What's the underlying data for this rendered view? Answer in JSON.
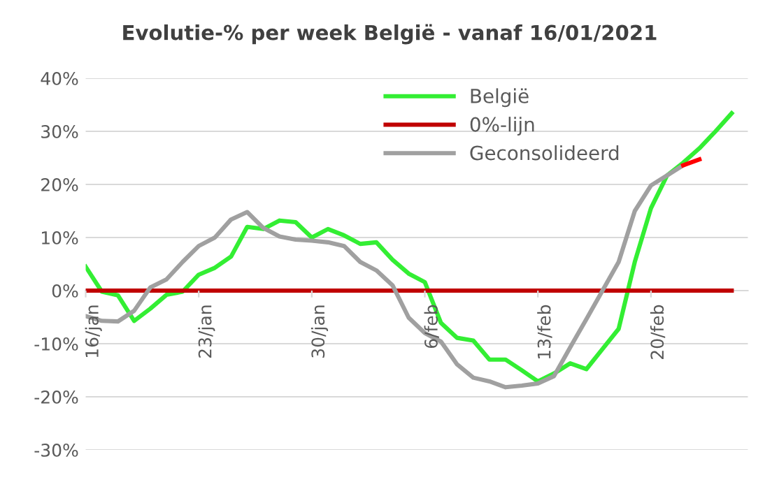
{
  "chart_data": {
    "type": "line",
    "title": "Evolutie-% per week België - vanaf 16/01/2021",
    "x": [
      "2021-01-16",
      "2021-01-17",
      "2021-01-18",
      "2021-01-19",
      "2021-01-20",
      "2021-01-21",
      "2021-01-22",
      "2021-01-23",
      "2021-01-24",
      "2021-01-25",
      "2021-01-26",
      "2021-01-27",
      "2021-01-28",
      "2021-01-29",
      "2021-01-30",
      "2021-01-31",
      "2021-02-01",
      "2021-02-02",
      "2021-02-03",
      "2021-02-04",
      "2021-02-05",
      "2021-02-06",
      "2021-02-07",
      "2021-02-08",
      "2021-02-09",
      "2021-02-10",
      "2021-02-11",
      "2021-02-12",
      "2021-02-13",
      "2021-02-14",
      "2021-02-15",
      "2021-02-16",
      "2021-02-17",
      "2021-02-18",
      "2021-02-19",
      "2021-02-20",
      "2021-02-21",
      "2021-02-22",
      "2021-02-23",
      "2021-02-24",
      "2021-02-25"
    ],
    "series": [
      {
        "name": "België",
        "color": "#33ee33",
        "values": [
          4.5,
          -0.2,
          -0.9,
          -5.7,
          -3.4,
          -0.8,
          -0.2,
          3.0,
          4.3,
          6.4,
          12.0,
          11.6,
          13.2,
          12.9,
          10.0,
          11.6,
          10.4,
          8.8,
          9.1,
          5.8,
          3.2,
          1.6,
          -6.1,
          -8.9,
          -9.4,
          -13.0,
          -13.0,
          -15.0,
          -17.1,
          -15.6,
          -13.7,
          -14.8,
          -11.0,
          -7.2,
          5.4,
          15.5,
          21.7,
          24.1,
          26.8,
          30.0,
          33.4
        ]
      },
      {
        "name": "0%-lijn",
        "color": "#c00000",
        "values": [
          0,
          0,
          0,
          0,
          0,
          0,
          0,
          0,
          0,
          0,
          0,
          0,
          0,
          0,
          0,
          0,
          0,
          0,
          0,
          0,
          0,
          0,
          0,
          0,
          0,
          0,
          0,
          0,
          0,
          0,
          0,
          0,
          0,
          0,
          0,
          0,
          0,
          0,
          0,
          0,
          0
        ]
      },
      {
        "name": "Geconsolideerd",
        "color": "#a0a0a0",
        "values": [
          -4.8,
          -5.7,
          -5.8,
          -3.8,
          0.6,
          2.1,
          5.4,
          8.4,
          10.0,
          13.4,
          14.8,
          11.8,
          10.2,
          9.6,
          9.4,
          9.1,
          8.4,
          5.4,
          3.8,
          1.0,
          -5.1,
          -8.0,
          -9.6,
          -13.9,
          -16.4,
          -17.1,
          -18.2,
          -17.9,
          -17.5,
          -16.1,
          -10.7,
          -5.4,
          0,
          5.4,
          15.0,
          19.8,
          21.7,
          23.6,
          null,
          null,
          null
        ]
      },
      {
        "color": "#ff0000",
        "values": [
          null,
          null,
          null,
          null,
          null,
          null,
          null,
          null,
          null,
          null,
          null,
          null,
          null,
          null,
          null,
          null,
          null,
          null,
          null,
          null,
          null,
          null,
          null,
          null,
          null,
          null,
          null,
          null,
          null,
          null,
          null,
          null,
          null,
          null,
          null,
          null,
          null,
          23.6,
          24.7,
          null,
          null
        ]
      }
    ],
    "xlim": [
      "2021-01-16",
      "2021-02-26"
    ],
    "xticks": [
      {
        "value": "2021-01-16",
        "label": "16/jan"
      },
      {
        "value": "2021-01-23",
        "label": "23/jan"
      },
      {
        "value": "2021-01-30",
        "label": "30/jan"
      },
      {
        "value": "2021-02-06",
        "label": "6/feb"
      },
      {
        "value": "2021-02-13",
        "label": "13/feb"
      },
      {
        "value": "2021-02-20",
        "label": "20/feb"
      }
    ],
    "ylim": [
      -30,
      40
    ],
    "yticks": [
      {
        "value": -30,
        "label": "-30%"
      },
      {
        "value": -20,
        "label": "-20%"
      },
      {
        "value": -10,
        "label": "-10%"
      },
      {
        "value": 0,
        "label": "0%"
      },
      {
        "value": 10,
        "label": "10%"
      },
      {
        "value": 20,
        "label": "20%"
      },
      {
        "value": 30,
        "label": "30%"
      },
      {
        "value": 40,
        "label": "40%"
      }
    ],
    "grid": "y",
    "legend": "top",
    "line_style": "solid",
    "marker": "none"
  }
}
